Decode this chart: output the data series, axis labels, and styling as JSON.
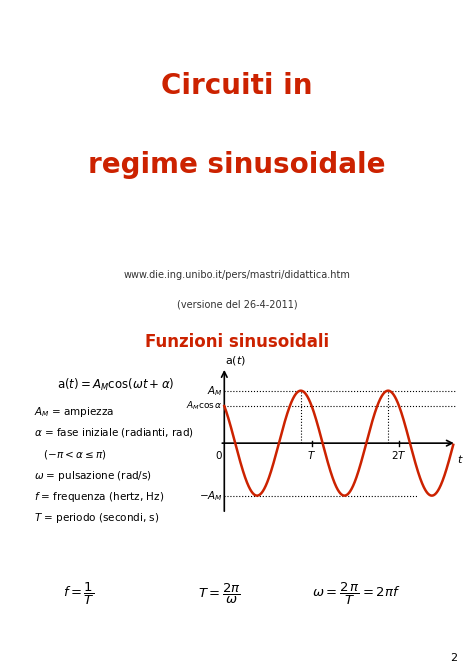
{
  "title_line1": "Circuiti in",
  "title_line2": "regime sinusoidale",
  "title_color": "#cc2200",
  "url_text": "www.die.ing.unibo.it/pers/mastri/didattica.htm",
  "version_text": "(versione del 26-4-2011)",
  "section_title": "Funzioni sinusoidali",
  "section_title_color": "#cc2200",
  "page_number": "2",
  "bg_color": "#ffffff",
  "red_color": "#cc2200",
  "border_color": "#aaaaaa",
  "box_border_color": "#6666bb",
  "alpha_val": 0.7854,
  "A_M": 1.0
}
